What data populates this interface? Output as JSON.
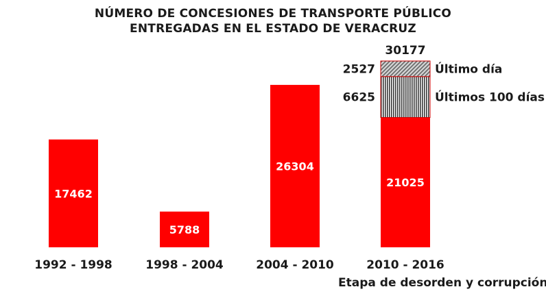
{
  "chart_data": {
    "type": "bar",
    "title_lines": [
      "NÚMERO DE CONCESIONES DE TRANSPORTE PÚBLICO",
      "ENTREGADAS EN EL ESTADO DE VERACRUZ"
    ],
    "categories": [
      "1992 - 1998",
      "1998 - 2004",
      "2004 - 2010",
      "2010 - 2016"
    ],
    "values": [
      17462,
      5788,
      26304,
      21025
    ],
    "stack": {
      "category": "2010 - 2016",
      "total": 30177,
      "segments": [
        {
          "name": "Últimos 100 días",
          "value": 6625,
          "pattern": "vertical-stripes"
        },
        {
          "name": "Último día",
          "value": 2527,
          "pattern": "diagonal-hatch"
        }
      ]
    },
    "annotation": "Etapa de desorden y corrupción",
    "ylim": [
      0,
      30177
    ],
    "grid": false,
    "legend": "inline labels to the right of stacked bar",
    "colors": {
      "bar": "#ff0000",
      "text": "#1a1a1a",
      "bar_label": "#ffffff",
      "outline": "#cc0000"
    }
  }
}
